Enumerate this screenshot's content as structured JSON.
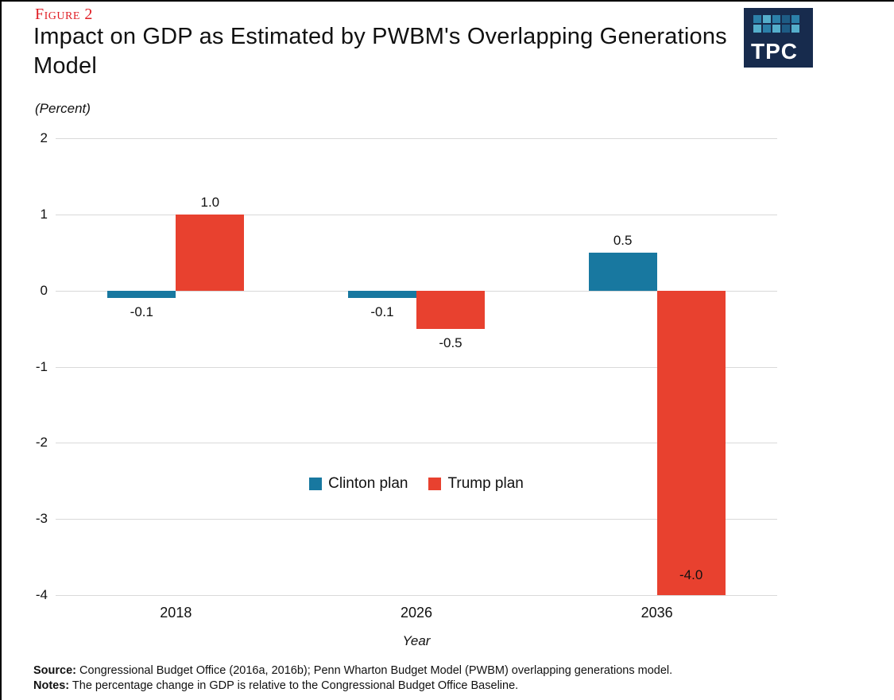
{
  "figure_label": "Figure 2",
  "title": "Impact on GDP as Estimated by PWBM's Overlapping Generations Model",
  "unit_label": "(Percent)",
  "logo": {
    "text": "TPC",
    "background": "#172b4d",
    "square_colors": [
      "#2c80a9",
      "#55aecb",
      "#2c80a9",
      "#1e5c85",
      "#2c80a9",
      "#55aecb",
      "#2c80a9",
      "#55aecb",
      "#1e5c85",
      "#55aecb"
    ]
  },
  "chart_data": {
    "type": "bar",
    "categories": [
      "2018",
      "2026",
      "2036"
    ],
    "series": [
      {
        "name": "Clinton plan",
        "color": "#1878a0",
        "values": [
          -0.1,
          -0.1,
          0.5
        ]
      },
      {
        "name": "Trump plan",
        "color": "#e8412f",
        "values": [
          1.0,
          -0.5,
          -4.0
        ]
      }
    ],
    "title": "Impact on GDP as Estimated by PWBM's Overlapping Generations Model",
    "xlabel": "Year",
    "ylabel": "(Percent)",
    "ylim": [
      -4,
      2
    ],
    "yticks": [
      2,
      1,
      0,
      -1,
      -2,
      -3,
      -4
    ],
    "grid": true,
    "legend_position": "inside-center",
    "gridline_color": "#d9d9d9"
  },
  "footer": {
    "source_prefix": "Source:",
    "source_text": " Congressional Budget Office (2016a, 2016b); Penn Wharton Budget Model (PWBM) overlapping generations model.",
    "notes_prefix": "Notes:",
    "notes_text": " The percentage change in GDP is relative to the Congressional Budget Office Baseline."
  }
}
